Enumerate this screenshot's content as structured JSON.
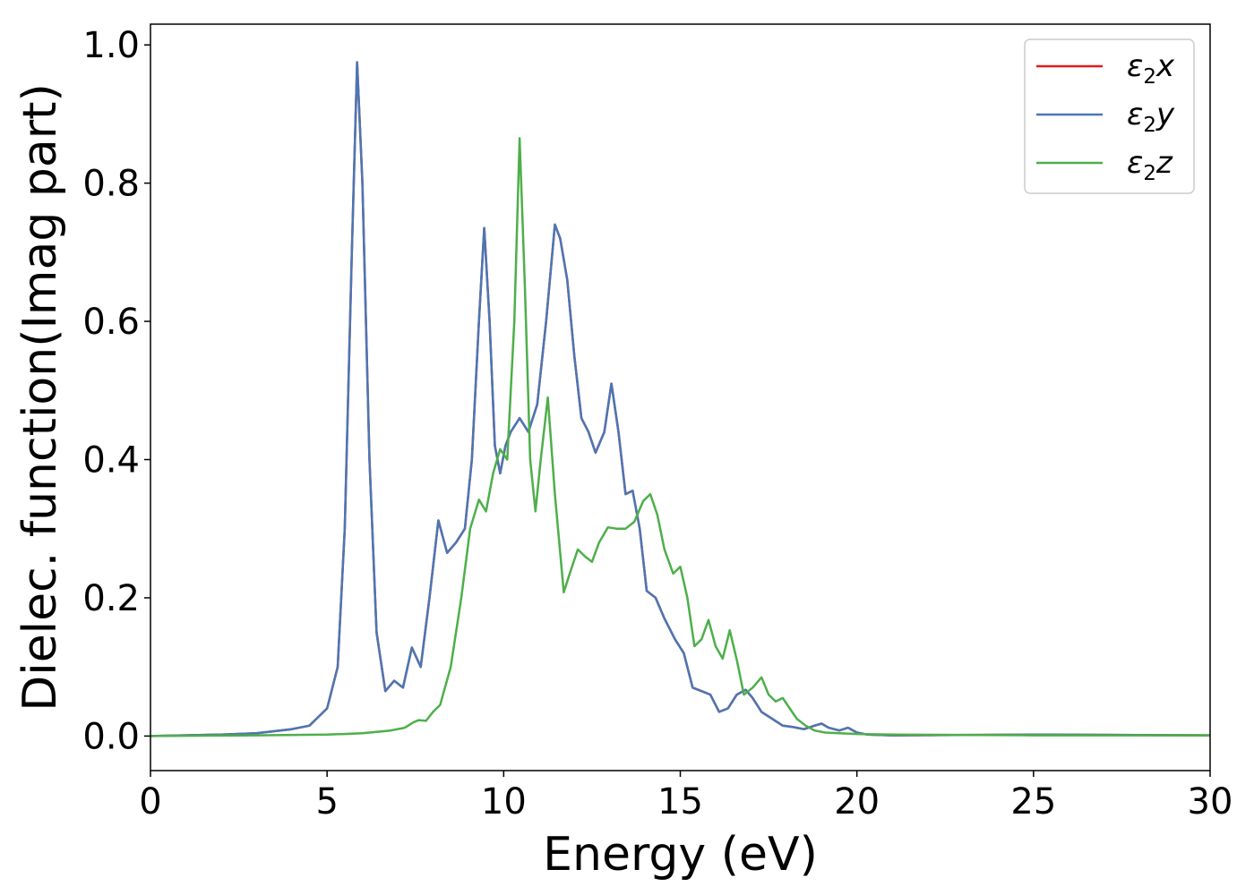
{
  "chart_data": {
    "type": "line",
    "title": "",
    "xlabel": "Energy (eV)",
    "ylabel": "Dielec. function(Imag part)",
    "xlim": [
      0,
      30
    ],
    "ylim": [
      -0.05,
      1.03
    ],
    "xticks": [
      "0",
      "5",
      "10",
      "15",
      "20",
      "25",
      "30"
    ],
    "yticks": [
      "0.0",
      "0.2",
      "0.4",
      "0.6",
      "0.8",
      "1.0"
    ],
    "grid": false,
    "legend_position": "top-right",
    "series": [
      {
        "name": "ε₂x",
        "legend_main": "ε",
        "legend_sub": "2",
        "legend_tail": "x",
        "color": "#e41a1c",
        "x": [
          0,
          2,
          3,
          4,
          4.5,
          5,
          5.3,
          5.5,
          5.7,
          5.85,
          6,
          6.2,
          6.4,
          6.65,
          6.9,
          7.15,
          7.4,
          7.65,
          7.9,
          8.15,
          8.4,
          8.65,
          8.9,
          9.1,
          9.3,
          9.45,
          9.6,
          9.75,
          9.9,
          10.05,
          10.2,
          10.45,
          10.7,
          10.95,
          11.2,
          11.45,
          11.6,
          11.8,
          12,
          12.2,
          12.4,
          12.6,
          12.85,
          13.05,
          13.25,
          13.45,
          13.65,
          13.85,
          14.05,
          14.3,
          14.55,
          14.85,
          15.1,
          15.35,
          15.6,
          15.85,
          16.1,
          16.35,
          16.6,
          16.85,
          17.05,
          17.3,
          17.6,
          17.9,
          18.2,
          18.5,
          18.8,
          19,
          19.2,
          19.5,
          19.75,
          20,
          20.3,
          21,
          25,
          30
        ],
        "y": [
          0,
          0.002,
          0.004,
          0.01,
          0.015,
          0.04,
          0.1,
          0.3,
          0.7,
          0.975,
          0.8,
          0.4,
          0.15,
          0.065,
          0.08,
          0.07,
          0.128,
          0.1,
          0.2,
          0.312,
          0.265,
          0.28,
          0.3,
          0.4,
          0.6,
          0.735,
          0.6,
          0.42,
          0.38,
          0.42,
          0.44,
          0.46,
          0.44,
          0.48,
          0.6,
          0.74,
          0.72,
          0.66,
          0.55,
          0.46,
          0.44,
          0.41,
          0.44,
          0.51,
          0.44,
          0.35,
          0.355,
          0.3,
          0.21,
          0.2,
          0.17,
          0.14,
          0.12,
          0.07,
          0.065,
          0.06,
          0.035,
          0.04,
          0.06,
          0.067,
          0.055,
          0.035,
          0.025,
          0.015,
          0.013,
          0.01,
          0.015,
          0.018,
          0.012,
          0.008,
          0.012,
          0.005,
          0.002,
          0.001,
          0.002,
          0.001
        ]
      },
      {
        "name": "ε₂y",
        "legend_main": "ε",
        "legend_sub": "2",
        "legend_tail": "y",
        "color": "#4a77b4",
        "x": [
          0,
          2,
          3,
          4,
          4.5,
          5,
          5.3,
          5.5,
          5.7,
          5.85,
          6,
          6.2,
          6.4,
          6.65,
          6.9,
          7.15,
          7.4,
          7.65,
          7.9,
          8.15,
          8.4,
          8.65,
          8.9,
          9.1,
          9.3,
          9.45,
          9.6,
          9.75,
          9.9,
          10.05,
          10.2,
          10.45,
          10.7,
          10.95,
          11.2,
          11.45,
          11.6,
          11.8,
          12,
          12.2,
          12.4,
          12.6,
          12.85,
          13.05,
          13.25,
          13.45,
          13.65,
          13.85,
          14.05,
          14.3,
          14.55,
          14.85,
          15.1,
          15.35,
          15.6,
          15.85,
          16.1,
          16.35,
          16.6,
          16.85,
          17.05,
          17.3,
          17.6,
          17.9,
          18.2,
          18.5,
          18.8,
          19,
          19.2,
          19.5,
          19.75,
          20,
          20.3,
          21,
          25,
          30
        ],
        "y": [
          0,
          0.002,
          0.004,
          0.01,
          0.015,
          0.04,
          0.1,
          0.3,
          0.7,
          0.975,
          0.8,
          0.4,
          0.15,
          0.065,
          0.08,
          0.07,
          0.128,
          0.1,
          0.2,
          0.312,
          0.265,
          0.28,
          0.3,
          0.4,
          0.6,
          0.735,
          0.6,
          0.42,
          0.38,
          0.42,
          0.44,
          0.46,
          0.44,
          0.48,
          0.6,
          0.74,
          0.72,
          0.66,
          0.55,
          0.46,
          0.44,
          0.41,
          0.44,
          0.51,
          0.44,
          0.35,
          0.355,
          0.3,
          0.21,
          0.2,
          0.17,
          0.14,
          0.12,
          0.07,
          0.065,
          0.06,
          0.035,
          0.04,
          0.06,
          0.067,
          0.055,
          0.035,
          0.025,
          0.015,
          0.013,
          0.01,
          0.015,
          0.018,
          0.012,
          0.008,
          0.012,
          0.005,
          0.002,
          0.001,
          0.002,
          0.001
        ]
      },
      {
        "name": "ε₂z",
        "legend_main": "ε",
        "legend_sub": "2",
        "legend_tail": "z",
        "color": "#4daf4a",
        "x": [
          0,
          3,
          5,
          6,
          6.8,
          7.2,
          7.45,
          7.6,
          7.8,
          8,
          8.2,
          8.5,
          8.8,
          9.05,
          9.3,
          9.5,
          9.7,
          9.9,
          10.1,
          10.3,
          10.45,
          10.6,
          10.75,
          10.9,
          11.05,
          11.25,
          11.45,
          11.7,
          11.9,
          12.1,
          12.3,
          12.5,
          12.7,
          12.95,
          13.2,
          13.45,
          13.7,
          13.95,
          14.15,
          14.35,
          14.55,
          14.8,
          15,
          15.2,
          15.4,
          15.6,
          15.8,
          16,
          16.2,
          16.4,
          16.6,
          16.8,
          17.05,
          17.3,
          17.5,
          17.7,
          17.9,
          18.1,
          18.3,
          18.55,
          18.8,
          19.1,
          19.5,
          20,
          21,
          25,
          30
        ],
        "y": [
          0,
          0.001,
          0.002,
          0.004,
          0.008,
          0.012,
          0.02,
          0.023,
          0.022,
          0.035,
          0.045,
          0.1,
          0.2,
          0.3,
          0.342,
          0.325,
          0.38,
          0.415,
          0.4,
          0.6,
          0.865,
          0.65,
          0.4,
          0.325,
          0.4,
          0.49,
          0.35,
          0.208,
          0.24,
          0.27,
          0.26,
          0.252,
          0.28,
          0.302,
          0.3,
          0.3,
          0.31,
          0.34,
          0.35,
          0.32,
          0.27,
          0.235,
          0.245,
          0.2,
          0.13,
          0.14,
          0.168,
          0.13,
          0.112,
          0.153,
          0.11,
          0.06,
          0.07,
          0.085,
          0.06,
          0.05,
          0.055,
          0.04,
          0.025,
          0.015,
          0.008,
          0.005,
          0.004,
          0.003,
          0.002,
          0.001,
          0.001
        ]
      }
    ]
  }
}
